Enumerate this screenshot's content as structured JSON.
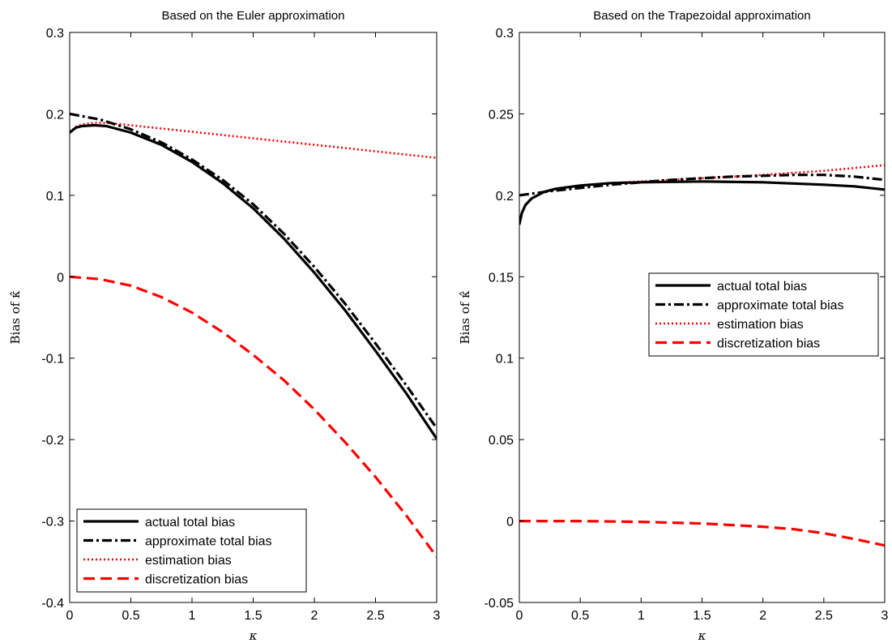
{
  "chart_data": [
    {
      "type": "line",
      "title": "Based on the Euler approximation",
      "xlabel": "κ",
      "ylabel": "Bias of κ̂",
      "xlim": [
        0,
        3
      ],
      "ylim": [
        -0.4,
        0.3
      ],
      "xticks": [
        0,
        0.5,
        1,
        1.5,
        2,
        2.5,
        3
      ],
      "xtick_labels": [
        "0",
        "0.5",
        "1",
        "1.5",
        "2",
        "2.5",
        "3"
      ],
      "yticks": [
        -0.4,
        -0.3,
        -0.2,
        -0.1,
        0,
        0.1,
        0.2,
        0.3
      ],
      "ytick_labels": [
        "-0.4",
        "-0.3",
        "-0.2",
        "-0.1",
        "0",
        "0.1",
        "0.2",
        "0.3"
      ],
      "grid": false,
      "legend_position": "bottom-left",
      "series": [
        {
          "name": "actual total bias",
          "color": "#000000",
          "style": "solid",
          "x": [
            0,
            0.05,
            0.1,
            0.2,
            0.3,
            0.5,
            0.75,
            1,
            1.25,
            1.5,
            1.75,
            2,
            2.25,
            2.5,
            2.75,
            3
          ],
          "y": [
            0.177,
            0.183,
            0.185,
            0.186,
            0.185,
            0.177,
            0.162,
            0.141,
            0.115,
            0.084,
            0.047,
            0.005,
            -0.041,
            -0.091,
            -0.143,
            -0.199
          ]
        },
        {
          "name": "approximate total bias",
          "color": "#000000",
          "style": "dashdot",
          "x": [
            0,
            0.25,
            0.5,
            0.75,
            1,
            1.25,
            1.5,
            1.75,
            2,
            2.25,
            2.5,
            2.75,
            3
          ],
          "y": [
            0.2,
            0.193,
            0.181,
            0.165,
            0.144,
            0.119,
            0.089,
            0.053,
            0.012,
            -0.033,
            -0.082,
            -0.133,
            -0.186
          ]
        },
        {
          "name": "estimation bias",
          "color": "#ff0000",
          "style": "dotted",
          "x": [
            0,
            0.05,
            0.1,
            0.2,
            0.3,
            0.5,
            1,
            1.5,
            2,
            2.5,
            3
          ],
          "y": [
            0.177,
            0.184,
            0.187,
            0.189,
            0.189,
            0.186,
            0.178,
            0.17,
            0.162,
            0.154,
            0.146
          ]
        },
        {
          "name": "discretization bias",
          "color": "#ff0000",
          "style": "dashed",
          "x": [
            0,
            0.25,
            0.5,
            0.75,
            1,
            1.25,
            1.5,
            1.75,
            2,
            2.25,
            2.5,
            2.75,
            3
          ],
          "y": [
            0,
            -0.003,
            -0.011,
            -0.025,
            -0.044,
            -0.068,
            -0.096,
            -0.127,
            -0.163,
            -0.203,
            -0.246,
            -0.293,
            -0.344
          ]
        }
      ]
    },
    {
      "type": "line",
      "title": "Based on the Trapezoidal approximation",
      "xlabel": "κ",
      "ylabel": "Bias of κ̂",
      "xlim": [
        0,
        3
      ],
      "ylim": [
        -0.05,
        0.3
      ],
      "xticks": [
        0,
        0.5,
        1,
        1.5,
        2,
        2.5,
        3
      ],
      "xtick_labels": [
        "0",
        "0.5",
        "1",
        "1.5",
        "2",
        "2.5",
        "3"
      ],
      "yticks": [
        -0.05,
        0,
        0.05,
        0.1,
        0.15,
        0.2,
        0.25,
        0.3
      ],
      "ytick_labels": [
        "-0.05",
        "0",
        "0.05",
        "0.1",
        "0.15",
        "0.2",
        "0.25",
        "0.3"
      ],
      "grid": false,
      "legend_position": "center-right",
      "series": [
        {
          "name": "actual total bias",
          "color": "#000000",
          "style": "solid",
          "x": [
            0,
            0.02,
            0.05,
            0.1,
            0.2,
            0.3,
            0.5,
            0.75,
            1,
            1.5,
            2,
            2.5,
            2.75,
            3
          ],
          "y": [
            0.182,
            0.189,
            0.194,
            0.198,
            0.202,
            0.204,
            0.206,
            0.2075,
            0.208,
            0.2085,
            0.208,
            0.2065,
            0.2055,
            0.2035
          ]
        },
        {
          "name": "approximate total bias",
          "color": "#000000",
          "style": "dashdot",
          "x": [
            0,
            0.25,
            0.5,
            0.75,
            1,
            1.25,
            1.5,
            1.75,
            2,
            2.25,
            2.5,
            2.75,
            3
          ],
          "y": [
            0.2,
            0.2025,
            0.2045,
            0.2065,
            0.208,
            0.2095,
            0.2105,
            0.2115,
            0.212,
            0.2125,
            0.2125,
            0.2115,
            0.2095
          ]
        },
        {
          "name": "estimation bias",
          "color": "#ff0000",
          "style": "dotted",
          "x": [
            0,
            0.02,
            0.05,
            0.1,
            0.2,
            0.3,
            0.5,
            0.75,
            1,
            1.5,
            2,
            2.5,
            3
          ],
          "y": [
            0.182,
            0.189,
            0.194,
            0.198,
            0.202,
            0.204,
            0.206,
            0.2075,
            0.2085,
            0.2105,
            0.2125,
            0.215,
            0.2185
          ]
        },
        {
          "name": "discretization bias",
          "color": "#ff0000",
          "style": "dashed",
          "x": [
            0,
            0.5,
            1,
            1.25,
            1.5,
            1.75,
            2,
            2.25,
            2.5,
            2.75,
            3
          ],
          "y": [
            0,
            0,
            -0.0005,
            -0.001,
            -0.0015,
            -0.0025,
            -0.0035,
            -0.005,
            -0.0075,
            -0.011,
            -0.015
          ]
        }
      ]
    }
  ]
}
